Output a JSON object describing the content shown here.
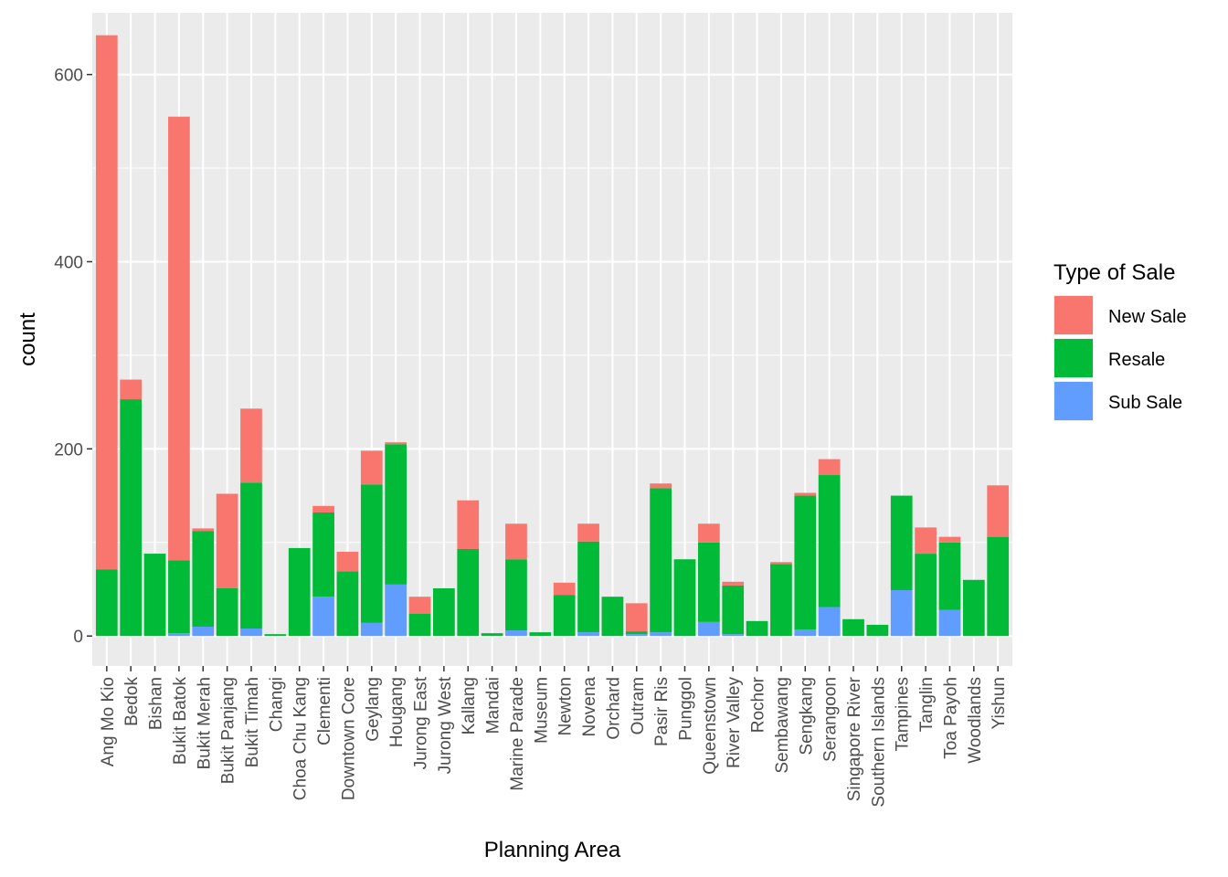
{
  "chart_data": {
    "type": "bar",
    "stacked": true,
    "title": "",
    "xlabel": "Planning Area",
    "ylabel": "count",
    "ylim": [
      -32,
      666
    ],
    "yticks": [
      0,
      200,
      400,
      600
    ],
    "grid": true,
    "legend_position": "right",
    "legend_title": "Type of Sale",
    "categories": [
      "Ang Mo Kio",
      "Bedok",
      "Bishan",
      "Bukit Batok",
      "Bukit Merah",
      "Bukit Panjang",
      "Bukit Timah",
      "Changi",
      "Choa Chu Kang",
      "Clementi",
      "Downtown Core",
      "Geylang",
      "Hougang",
      "Jurong East",
      "Jurong West",
      "Kallang",
      "Mandai",
      "Marine Parade",
      "Museum",
      "Newton",
      "Novena",
      "Orchard",
      "Outram",
      "Pasir Ris",
      "Punggol",
      "Queenstown",
      "River Valley",
      "Rochor",
      "Sembawang",
      "Sengkang",
      "Serangoon",
      "Singapore River",
      "Southern Islands",
      "Tampines",
      "Tanglin",
      "Toa Payoh",
      "Woodlands",
      "Yishun"
    ],
    "series": [
      {
        "name": "Sub Sale",
        "color": "#619CFF",
        "values": [
          0,
          0,
          0,
          3,
          10,
          0,
          8,
          0,
          0,
          42,
          0,
          14,
          55,
          0,
          0,
          0,
          0,
          6,
          0,
          0,
          4,
          0,
          2,
          4,
          0,
          15,
          2,
          0,
          0,
          7,
          31,
          0,
          0,
          49,
          0,
          28,
          0,
          0
        ]
      },
      {
        "name": "Resale",
        "color": "#00BA38",
        "values": [
          71,
          253,
          88,
          78,
          102,
          51,
          156,
          2,
          94,
          90,
          69,
          148,
          150,
          24,
          51,
          93,
          3,
          76,
          4,
          44,
          97,
          42,
          3,
          154,
          82,
          85,
          52,
          16,
          77,
          143,
          141,
          18,
          12,
          101,
          88,
          72,
          60,
          106
        ]
      },
      {
        "name": "New Sale",
        "color": "#F8766D",
        "values": [
          571,
          21,
          0,
          474,
          3,
          101,
          79,
          0,
          0,
          7,
          21,
          36,
          2,
          18,
          0,
          52,
          0,
          38,
          0,
          13,
          19,
          0,
          30,
          5,
          0,
          20,
          4,
          0,
          2,
          3,
          17,
          0,
          0,
          0,
          28,
          6,
          0,
          55
        ]
      }
    ]
  }
}
